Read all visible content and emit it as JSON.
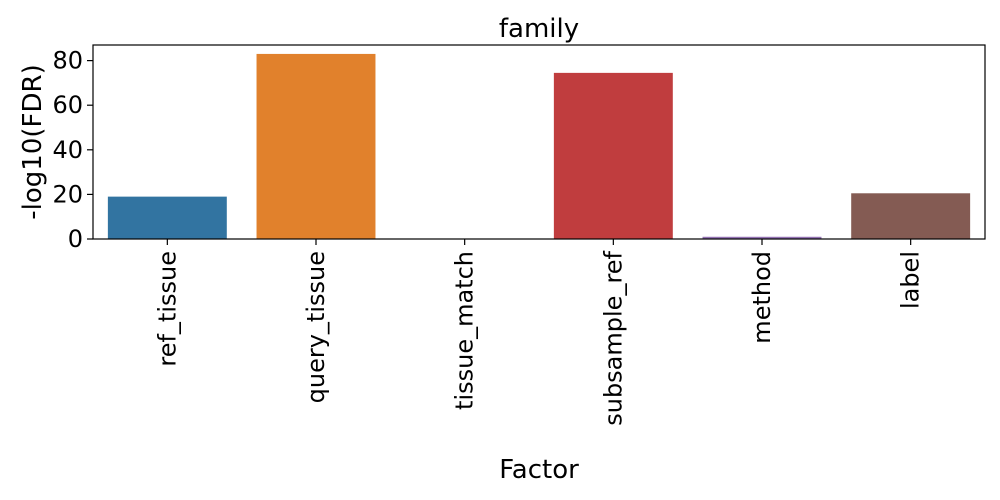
{
  "chart_data": {
    "type": "bar",
    "title": "family",
    "xlabel": "Factor",
    "ylabel": "-log10(FDR)",
    "categories": [
      "ref_tissue",
      "query_tissue",
      "tissue_match",
      "subsample_ref",
      "method",
      "label"
    ],
    "values": [
      19,
      83,
      0,
      74.5,
      1,
      20.5
    ],
    "colors": [
      "#3274a1",
      "#e1812c",
      "#3a923a",
      "#c03d3e",
      "#9372b2",
      "#845b53"
    ],
    "ylim": [
      0,
      87
    ],
    "yticks": [
      0,
      20,
      40,
      60,
      80
    ],
    "grid": false,
    "legend": "none"
  }
}
